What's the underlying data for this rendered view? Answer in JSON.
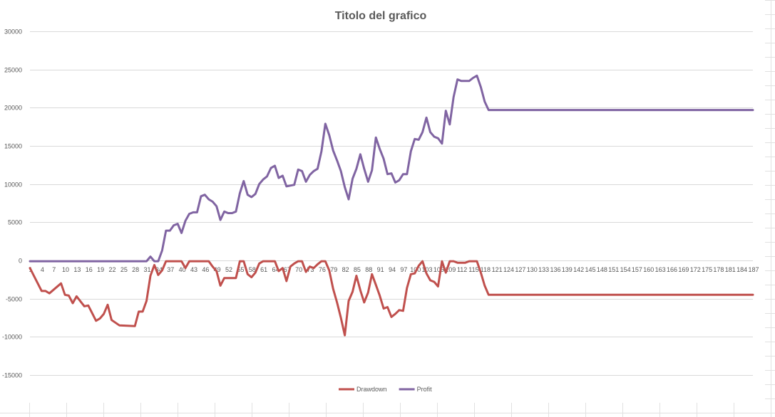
{
  "chart_data": {
    "type": "line",
    "title": "Titolo del grafico",
    "ylim": [
      -15000,
      30000
    ],
    "y_ticks": [
      "30000",
      "25000",
      "20000",
      "15000",
      "10000",
      "5000",
      "0",
      "-5000",
      "-10000",
      "-15000"
    ],
    "x_tick_labels": [
      "1",
      "4",
      "7",
      "10",
      "13",
      "16",
      "19",
      "22",
      "25",
      "28",
      "31",
      "34",
      "37",
      "40",
      "43",
      "46",
      "49",
      "52",
      "55",
      "58",
      "61",
      "64",
      "67",
      "70",
      "73",
      "76",
      "79",
      "82",
      "85",
      "88",
      "91",
      "94",
      "97",
      "100",
      "103",
      "106",
      "109",
      "112",
      "115",
      "118",
      "121",
      "124",
      "127",
      "130",
      "133",
      "136",
      "139",
      "142",
      "145",
      "148",
      "151",
      "154",
      "157",
      "160",
      "163",
      "166",
      "169",
      "172",
      "175",
      "178",
      "181",
      "184",
      "187"
    ],
    "grid": true,
    "legend_position": "bottom",
    "series": [
      {
        "name": "Drawdown",
        "color": "#c0504d",
        "points": [
          [
            1,
            -1000
          ],
          [
            4,
            -4000
          ],
          [
            5,
            -4000
          ],
          [
            6,
            -4300
          ],
          [
            9,
            -3000
          ],
          [
            10,
            -4500
          ],
          [
            11,
            -4600
          ],
          [
            12,
            -5600
          ],
          [
            13,
            -4700
          ],
          [
            15,
            -6000
          ],
          [
            16,
            -5900
          ],
          [
            18,
            -7900
          ],
          [
            19,
            -7600
          ],
          [
            20,
            -7000
          ],
          [
            21,
            -5800
          ],
          [
            22,
            -7800
          ],
          [
            24,
            -8500
          ],
          [
            28,
            -8600
          ],
          [
            29,
            -6700
          ],
          [
            30,
            -6700
          ],
          [
            31,
            -5300
          ],
          [
            32,
            -2000
          ],
          [
            33,
            -600
          ],
          [
            34,
            -1900
          ],
          [
            35,
            -1300
          ],
          [
            36,
            -100
          ],
          [
            40,
            -100
          ],
          [
            41,
            -1000
          ],
          [
            42,
            -100
          ],
          [
            47,
            -100
          ],
          [
            48,
            -800
          ],
          [
            49,
            -1400
          ],
          [
            50,
            -3300
          ],
          [
            51,
            -2300
          ],
          [
            54,
            -2300
          ],
          [
            55,
            -100
          ],
          [
            56,
            -100
          ],
          [
            57,
            -1800
          ],
          [
            58,
            -2200
          ],
          [
            59,
            -1600
          ],
          [
            60,
            -400
          ],
          [
            61,
            -100
          ],
          [
            64,
            -100
          ],
          [
            65,
            -1400
          ],
          [
            66,
            -1000
          ],
          [
            67,
            -2700
          ],
          [
            68,
            -800
          ],
          [
            69,
            -400
          ],
          [
            70,
            -100
          ],
          [
            71,
            -100
          ],
          [
            72,
            -1500
          ],
          [
            73,
            -800
          ],
          [
            74,
            -1000
          ],
          [
            75,
            -500
          ],
          [
            76,
            -100
          ],
          [
            77,
            -100
          ],
          [
            78,
            -1300
          ],
          [
            79,
            -3700
          ],
          [
            80,
            -5500
          ],
          [
            81,
            -7500
          ],
          [
            82,
            -9800
          ],
          [
            83,
            -5300
          ],
          [
            84,
            -4100
          ],
          [
            85,
            -2000
          ],
          [
            86,
            -3900
          ],
          [
            87,
            -5500
          ],
          [
            88,
            -4200
          ],
          [
            89,
            -1800
          ],
          [
            90,
            -3200
          ],
          [
            91,
            -4600
          ],
          [
            92,
            -6300
          ],
          [
            93,
            -6100
          ],
          [
            94,
            -7400
          ],
          [
            95,
            -7000
          ],
          [
            96,
            -6500
          ],
          [
            97,
            -6600
          ],
          [
            98,
            -3600
          ],
          [
            99,
            -1800
          ],
          [
            100,
            -1700
          ],
          [
            101,
            -700
          ],
          [
            102,
            -100
          ],
          [
            103,
            -1700
          ],
          [
            104,
            -2600
          ],
          [
            105,
            -2800
          ],
          [
            106,
            -3400
          ],
          [
            107,
            -100
          ],
          [
            108,
            -1600
          ],
          [
            109,
            -100
          ],
          [
            110,
            -100
          ],
          [
            111,
            -300
          ],
          [
            113,
            -300
          ],
          [
            114,
            -100
          ],
          [
            116,
            -100
          ],
          [
            117,
            -1600
          ],
          [
            118,
            -3300
          ],
          [
            119,
            -4500
          ],
          [
            187,
            -4500
          ]
        ]
      },
      {
        "name": "Profit",
        "color": "#8064a2",
        "points": [
          [
            1,
            -100
          ],
          [
            31,
            -100
          ],
          [
            32,
            500
          ],
          [
            33,
            -100
          ],
          [
            34,
            -100
          ],
          [
            35,
            1300
          ],
          [
            36,
            3900
          ],
          [
            37,
            3900
          ],
          [
            38,
            4600
          ],
          [
            39,
            4800
          ],
          [
            40,
            3600
          ],
          [
            41,
            5200
          ],
          [
            42,
            6100
          ],
          [
            43,
            6300
          ],
          [
            44,
            6300
          ],
          [
            45,
            8400
          ],
          [
            46,
            8600
          ],
          [
            47,
            8000
          ],
          [
            48,
            7700
          ],
          [
            49,
            7100
          ],
          [
            50,
            5300
          ],
          [
            51,
            6400
          ],
          [
            52,
            6200
          ],
          [
            53,
            6200
          ],
          [
            54,
            6400
          ],
          [
            55,
            8800
          ],
          [
            56,
            10400
          ],
          [
            57,
            8600
          ],
          [
            58,
            8300
          ],
          [
            59,
            8700
          ],
          [
            60,
            10000
          ],
          [
            61,
            10600
          ],
          [
            62,
            11000
          ],
          [
            63,
            12100
          ],
          [
            64,
            12400
          ],
          [
            65,
            10800
          ],
          [
            66,
            11100
          ],
          [
            67,
            9700
          ],
          [
            68,
            9800
          ],
          [
            69,
            9900
          ],
          [
            70,
            11900
          ],
          [
            71,
            11700
          ],
          [
            72,
            10300
          ],
          [
            73,
            11200
          ],
          [
            74,
            11700
          ],
          [
            75,
            12000
          ],
          [
            76,
            14300
          ],
          [
            77,
            17900
          ],
          [
            78,
            16400
          ],
          [
            79,
            14400
          ],
          [
            80,
            13100
          ],
          [
            81,
            11700
          ],
          [
            82,
            9600
          ],
          [
            83,
            8000
          ],
          [
            84,
            10700
          ],
          [
            85,
            12000
          ],
          [
            86,
            13900
          ],
          [
            87,
            12000
          ],
          [
            88,
            10300
          ],
          [
            89,
            11800
          ],
          [
            90,
            16100
          ],
          [
            91,
            14600
          ],
          [
            92,
            13300
          ],
          [
            93,
            11300
          ],
          [
            94,
            11400
          ],
          [
            95,
            10200
          ],
          [
            96,
            10500
          ],
          [
            97,
            11300
          ],
          [
            98,
            11300
          ],
          [
            99,
            14300
          ],
          [
            100,
            15900
          ],
          [
            101,
            15800
          ],
          [
            102,
            16800
          ],
          [
            103,
            18700
          ],
          [
            104,
            16800
          ],
          [
            105,
            16200
          ],
          [
            106,
            16000
          ],
          [
            107,
            15300
          ],
          [
            108,
            19600
          ],
          [
            109,
            17800
          ],
          [
            110,
            21400
          ],
          [
            111,
            23700
          ],
          [
            112,
            23500
          ],
          [
            114,
            23500
          ],
          [
            115,
            23900
          ],
          [
            116,
            24200
          ],
          [
            117,
            22700
          ],
          [
            118,
            20800
          ],
          [
            119,
            19700
          ],
          [
            187,
            19700
          ]
        ]
      }
    ]
  }
}
